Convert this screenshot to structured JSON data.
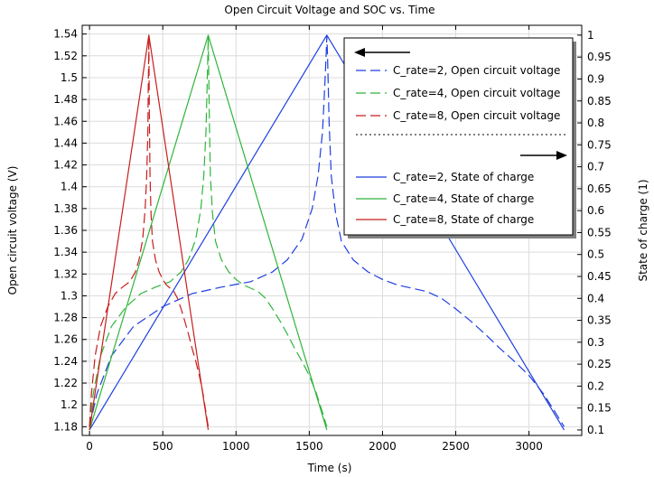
{
  "chart_data": {
    "type": "line",
    "title": "Open Circuit Voltage and SOC vs. Time",
    "xlabel": "Time (s)",
    "ylabel": "Open circuit voltage (V)",
    "y2label": "State of charge (1)",
    "xlim": [
      -50,
      3360
    ],
    "ylim": [
      1.172,
      1.548
    ],
    "y2lim": [
      0.0875,
      1.0225
    ],
    "x_ticks": [
      0,
      500,
      1000,
      1500,
      2000,
      2500,
      3000
    ],
    "y_ticks": [
      1.18,
      1.2,
      1.22,
      1.24,
      1.26,
      1.28,
      1.3,
      1.32,
      1.34,
      1.36,
      1.38,
      1.4,
      1.42,
      1.44,
      1.46,
      1.48,
      1.5,
      1.52,
      1.54
    ],
    "y2_ticks": [
      0.1,
      0.15,
      0.2,
      0.25,
      0.3,
      0.35,
      0.4,
      0.45,
      0.5,
      0.55,
      0.6,
      0.65,
      0.7,
      0.75,
      0.8,
      0.85,
      0.9,
      0.95,
      1
    ],
    "grid": true,
    "legend_placement": "top-right",
    "colors": {
      "blue": "#1f3fe0",
      "green": "#2fb53a",
      "red": "#c81e1e",
      "grid": "#dcdcdc"
    },
    "series": [
      {
        "name": "C_rate=2, Open circuit voltage",
        "axis": "left",
        "style": "dashed",
        "color": "#1f3fe0",
        "x": [
          0,
          50,
          150,
          300,
          500,
          700,
          900,
          1100,
          1250,
          1350,
          1450,
          1520,
          1560,
          1590,
          1605,
          1615,
          1620,
          1625,
          1635,
          1650,
          1680,
          1720,
          1800,
          1900,
          2000,
          2100,
          2200,
          2300,
          2400,
          2500,
          2600,
          2700,
          2800,
          2900,
          3000,
          3100,
          3180,
          3240
        ],
        "y": [
          1.18,
          1.21,
          1.245,
          1.272,
          1.29,
          1.302,
          1.308,
          1.313,
          1.322,
          1.333,
          1.352,
          1.38,
          1.41,
          1.45,
          1.49,
          1.52,
          1.538,
          1.52,
          1.46,
          1.41,
          1.375,
          1.35,
          1.333,
          1.322,
          1.315,
          1.31,
          1.307,
          1.304,
          1.298,
          1.288,
          1.277,
          1.265,
          1.252,
          1.24,
          1.227,
          1.21,
          1.193,
          1.18
        ]
      },
      {
        "name": "C_rate=4, Open circuit voltage",
        "axis": "left",
        "style": "dashed",
        "color": "#2fb53a",
        "x": [
          0,
          25,
          75,
          150,
          250,
          350,
          450,
          550,
          625,
          675,
          725,
          760,
          780,
          795,
          802,
          808,
          810,
          812,
          818,
          825,
          840,
          860,
          900,
          950,
          1000,
          1050,
          1100,
          1150,
          1200,
          1250,
          1300,
          1350,
          1400,
          1450,
          1500,
          1550,
          1590,
          1620
        ],
        "y": [
          1.18,
          1.21,
          1.245,
          1.272,
          1.29,
          1.302,
          1.308,
          1.313,
          1.322,
          1.333,
          1.352,
          1.38,
          1.41,
          1.45,
          1.49,
          1.52,
          1.538,
          1.52,
          1.46,
          1.41,
          1.375,
          1.35,
          1.333,
          1.322,
          1.315,
          1.31,
          1.307,
          1.304,
          1.298,
          1.288,
          1.277,
          1.265,
          1.252,
          1.24,
          1.227,
          1.21,
          1.193,
          1.18
        ]
      },
      {
        "name": "C_rate=8, Open circuit voltage",
        "axis": "left",
        "style": "dashed",
        "color": "#c81e1e",
        "x": [
          0,
          13,
          38,
          75,
          125,
          175,
          225,
          275,
          313,
          338,
          363,
          380,
          390,
          398,
          401,
          404,
          405,
          406,
          409,
          413,
          420,
          430,
          450,
          475,
          500,
          525,
          550,
          575,
          600,
          625,
          650,
          675,
          700,
          725,
          750,
          775,
          795,
          810
        ],
        "y": [
          1.18,
          1.21,
          1.245,
          1.272,
          1.29,
          1.302,
          1.308,
          1.313,
          1.322,
          1.333,
          1.352,
          1.38,
          1.41,
          1.45,
          1.49,
          1.52,
          1.538,
          1.52,
          1.46,
          1.41,
          1.375,
          1.35,
          1.333,
          1.322,
          1.315,
          1.31,
          1.307,
          1.304,
          1.298,
          1.288,
          1.277,
          1.265,
          1.252,
          1.24,
          1.227,
          1.21,
          1.193,
          1.18
        ]
      },
      {
        "name": "C_rate=2, State of charge",
        "axis": "right",
        "style": "solid",
        "color": "#1f3fe0",
        "x": [
          0,
          1620,
          3240
        ],
        "y": [
          0.1,
          1,
          0.1
        ]
      },
      {
        "name": "C_rate=4, State of charge",
        "axis": "right",
        "style": "solid",
        "color": "#2fb53a",
        "x": [
          0,
          810,
          1620
        ],
        "y": [
          0.1,
          1,
          0.1
        ]
      },
      {
        "name": "C_rate=8, State of charge",
        "axis": "right",
        "style": "solid",
        "color": "#c81e1e",
        "x": [
          0,
          405,
          810
        ],
        "y": [
          0.1,
          1,
          0.1
        ]
      }
    ]
  }
}
